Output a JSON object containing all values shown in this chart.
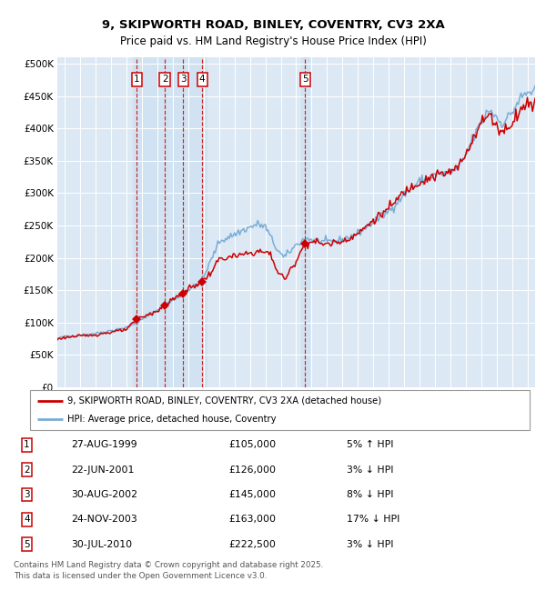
{
  "title_line1": "9, SKIPWORTH ROAD, BINLEY, COVENTRY, CV3 2XA",
  "title_line2": "Price paid vs. HM Land Registry's House Price Index (HPI)",
  "legend_red": "9, SKIPWORTH ROAD, BINLEY, COVENTRY, CV3 2XA (detached house)",
  "legend_blue": "HPI: Average price, detached house, Coventry",
  "footnote": "Contains HM Land Registry data © Crown copyright and database right 2025.\nThis data is licensed under the Open Government Licence v3.0.",
  "transactions": [
    {
      "num": 1,
      "date_f": 1999.661,
      "price": 105000,
      "label": "27-AUG-1999",
      "pct": "5%",
      "dir": "↑"
    },
    {
      "num": 2,
      "date_f": 2001.472,
      "price": 126000,
      "label": "22-JUN-2001",
      "pct": "3%",
      "dir": "↓"
    },
    {
      "num": 3,
      "date_f": 2002.661,
      "price": 145000,
      "label": "30-AUG-2002",
      "pct": "8%",
      "dir": "↓"
    },
    {
      "num": 4,
      "date_f": 2003.897,
      "price": 163000,
      "label": "24-NOV-2003",
      "pct": "17%",
      "dir": "↓"
    },
    {
      "num": 5,
      "date_f": 2010.58,
      "price": 222500,
      "label": "30-JUL-2010",
      "pct": "3%",
      "dir": "↓"
    }
  ],
  "ylim": [
    0,
    510000
  ],
  "yticks": [
    0,
    50000,
    100000,
    150000,
    200000,
    250000,
    300000,
    350000,
    400000,
    450000,
    500000
  ],
  "xlim_left": 1994.5,
  "xlim_right": 2025.5,
  "bg_color": "#dce9f5",
  "grid_color": "#ffffff",
  "red_line_color": "#cc0000",
  "blue_line_color": "#7aadd4",
  "dashed_color": "#cc0000",
  "marker_color": "#cc0000",
  "box_color": "#cc0000",
  "highlight_bg": "#c8dff0"
}
